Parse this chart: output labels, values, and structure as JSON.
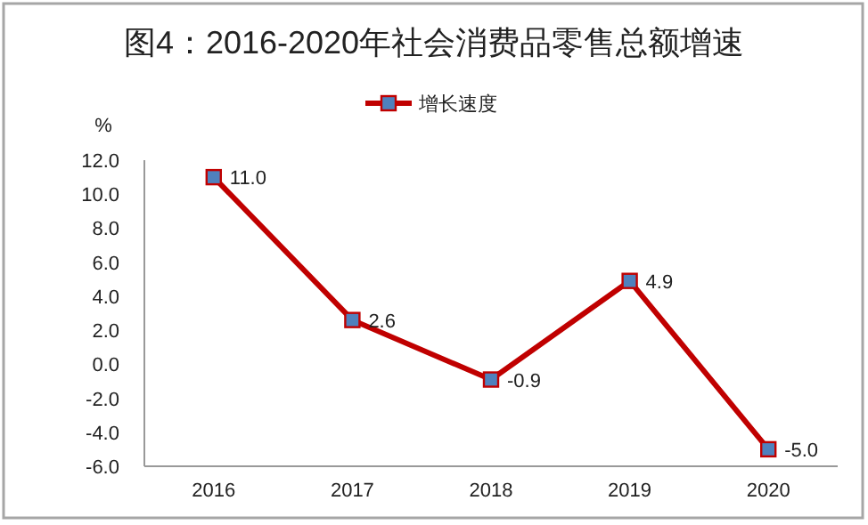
{
  "chart_data": {
    "type": "line",
    "title": "图4：2016-2020年社会消费品零售总额增速",
    "ylabel": "%",
    "categories": [
      "2016",
      "2017",
      "2018",
      "2019",
      "2020"
    ],
    "series": [
      {
        "name": "增长速度",
        "color": "#c00000",
        "values": [
          11.0,
          2.6,
          -0.9,
          4.9,
          -5.0
        ],
        "value_labels": [
          "11.0",
          "2.6",
          "-0.9",
          "4.9",
          "-5.0"
        ]
      }
    ],
    "ylim": [
      -6,
      12
    ],
    "yticks": [
      {
        "value": -6,
        "label": "-6.0"
      },
      {
        "value": -4,
        "label": "-4.0"
      },
      {
        "value": -2,
        "label": "-2.0"
      },
      {
        "value": 0,
        "label": "0.0"
      },
      {
        "value": 2,
        "label": "2.0"
      },
      {
        "value": 4,
        "label": "4.0"
      },
      {
        "value": 6,
        "label": "6.0"
      },
      {
        "value": 8,
        "label": "8.0"
      },
      {
        "value": 10,
        "label": "10.0"
      },
      {
        "value": 12,
        "label": "12.0"
      }
    ],
    "marker": "square",
    "line_style": "solid",
    "legend": "top",
    "grid": false
  }
}
